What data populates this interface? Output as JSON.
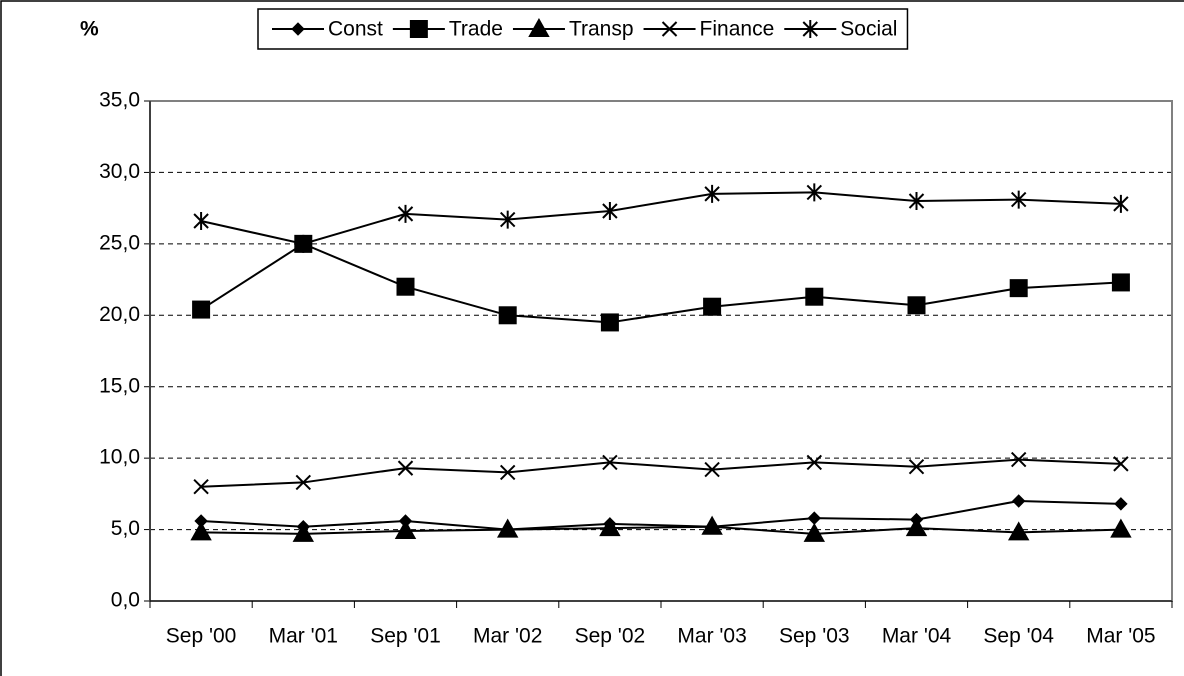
{
  "chart_data": {
    "type": "line",
    "y_label": "%",
    "categories": [
      "Sep '00",
      "Mar '01",
      "Sep '01",
      "Mar '02",
      "Sep '02",
      "Mar '03",
      "Sep '03",
      "Mar '04",
      "Sep '04",
      "Mar '05"
    ],
    "series": [
      {
        "name": "Const",
        "color": "#000000",
        "marker": "diamond",
        "values": [
          5.6,
          5.2,
          5.6,
          5.0,
          5.4,
          5.2,
          5.8,
          5.7,
          7.0,
          6.8
        ]
      },
      {
        "name": "Trade",
        "color": "#000000",
        "marker": "square",
        "values": [
          20.4,
          25.0,
          22.0,
          20.0,
          19.5,
          20.6,
          21.3,
          20.7,
          21.9,
          22.3
        ]
      },
      {
        "name": "Transp",
        "color": "#000000",
        "marker": "triangle",
        "values": [
          4.8,
          4.7,
          4.9,
          5.0,
          5.1,
          5.2,
          4.7,
          5.1,
          4.8,
          5.0
        ]
      },
      {
        "name": "Finance",
        "color": "#000000",
        "marker": "x",
        "values": [
          8.0,
          8.3,
          9.3,
          9.0,
          9.7,
          9.2,
          9.7,
          9.4,
          9.9,
          9.6
        ]
      },
      {
        "name": "Social",
        "color": "#000000",
        "marker": "asterisk",
        "values": [
          26.6,
          25.0,
          27.1,
          26.7,
          27.3,
          28.5,
          28.6,
          28.0,
          28.1,
          27.8
        ]
      }
    ],
    "ylim": [
      0,
      35
    ],
    "yticks": [
      {
        "value": 0,
        "label": "0,0"
      },
      {
        "value": 5,
        "label": "5,0"
      },
      {
        "value": 10,
        "label": "10,0"
      },
      {
        "value": 15,
        "label": "15,0"
      },
      {
        "value": 20,
        "label": "20,0"
      },
      {
        "value": 25,
        "label": "25,0"
      },
      {
        "value": 30,
        "label": "30,0"
      },
      {
        "value": 35,
        "label": "35,0"
      }
    ],
    "grid": true,
    "legend": "top"
  }
}
